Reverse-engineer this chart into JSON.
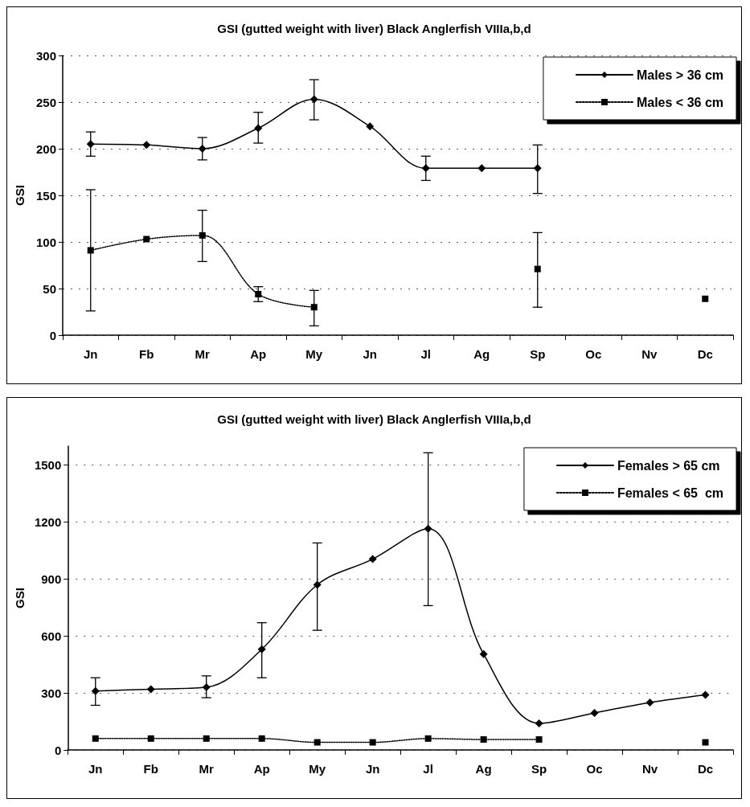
{
  "chart_data": [
    {
      "type": "line",
      "title": "GSI (gutted weight with liver) Black Anglerfish VIIIa,b,d",
      "ylabel": "GSI",
      "categories": [
        "Jn",
        "Fb",
        "Mr",
        "Ap",
        "My",
        "Jn",
        "Jl",
        "Ag",
        "Sp",
        "Oc",
        "Nv",
        "Dc"
      ],
      "ylim": [
        0,
        300
      ],
      "yticks": [
        0,
        50,
        100,
        150,
        200,
        250,
        300
      ],
      "grid": "y",
      "legend": "top right",
      "series": [
        {
          "name": "Males > 36 cm",
          "color": "#000000",
          "marker": "diamond",
          "line_style": "solid",
          "values": [
            205,
            204,
            200,
            222,
            253,
            224,
            179,
            179,
            179,
            null,
            null,
            null
          ],
          "errors": [
            [
              192,
              218
            ],
            null,
            [
              188,
              212
            ],
            [
              206,
              239
            ],
            [
              231,
              274
            ],
            null,
            [
              166,
              192
            ],
            null,
            [
              152,
              204
            ],
            null,
            null,
            null
          ]
        },
        {
          "name": "Males < 36 cm",
          "color": "#000000",
          "marker": "square",
          "line_style": "dotted",
          "values": [
            91,
            103,
            107,
            44,
            30,
            null,
            null,
            null,
            71,
            null,
            null,
            39
          ],
          "errors": [
            [
              26,
              156
            ],
            null,
            [
              79,
              134
            ],
            [
              36,
              52
            ],
            [
              10,
              48
            ],
            null,
            null,
            null,
            [
              30,
              110
            ],
            null,
            null,
            null
          ]
        }
      ]
    },
    {
      "type": "line",
      "title": "GSI (gutted weight with liver) Black Anglerfish VIIIa,b,d",
      "ylabel": "GSI",
      "categories": [
        "Jn",
        "Fb",
        "Mr",
        "Ap",
        "My",
        "Jn",
        "Jl",
        "Ag",
        "Sp",
        "Oc",
        "Nv",
        "Dc"
      ],
      "ylim": [
        0,
        1600
      ],
      "yticks": [
        0,
        300,
        600,
        900,
        1200,
        1500
      ],
      "grid": "y",
      "legend": "top right",
      "series": [
        {
          "name": "Females > 65 cm",
          "color": "#000000",
          "marker": "diamond",
          "line_style": "solid",
          "values": [
            310,
            320,
            330,
            530,
            870,
            1005,
            1165,
            505,
            140,
            195,
            250,
            290
          ],
          "errors": [
            [
              235,
              380
            ],
            null,
            [
              275,
              390
            ],
            [
              380,
              670
            ],
            [
              630,
              1090
            ],
            null,
            [
              760,
              1565
            ],
            null,
            null,
            null,
            null,
            null
          ]
        },
        {
          "name": "Females < 65  cm",
          "color": "#000000",
          "marker": "square",
          "line_style": "dotted",
          "values": [
            60,
            60,
            60,
            60,
            40,
            40,
            60,
            55,
            55,
            null,
            null,
            40
          ]
        }
      ]
    }
  ]
}
